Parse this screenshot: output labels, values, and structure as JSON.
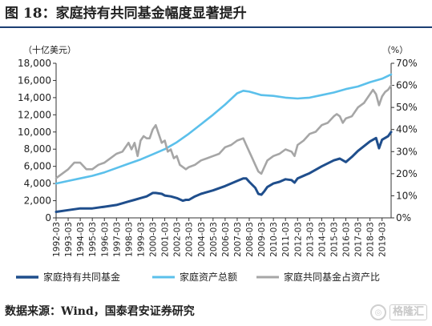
{
  "figure": {
    "title": "图 18：家庭持有共同基金幅度显著提升",
    "source": "数据来源：Wind，国泰君安证券研究",
    "watermark": "格隆汇"
  },
  "chart_data": {
    "type": "line",
    "left_axis_label": "（十亿美元）",
    "right_axis_label": "（%）",
    "y_left_range": [
      0,
      18000
    ],
    "y_left_ticks": [
      "0",
      "2,000",
      "4,000",
      "6,000",
      "8,000",
      "10,000",
      "12,000",
      "14,000",
      "16,000",
      "18,000"
    ],
    "y_right_range": [
      0,
      70
    ],
    "y_right_ticks": [
      "0%",
      "10%",
      "20%",
      "30%",
      "40%",
      "50%",
      "60%",
      "70%"
    ],
    "x_range": [
      1992.0,
      2019.75
    ],
    "x_tick_labels": [
      "1992-03",
      "1993-03",
      "1994-03",
      "1995-03",
      "1996-03",
      "1997-03",
      "1998-03",
      "1999-03",
      "2000-03",
      "2001-03",
      "2002-03",
      "2003-03",
      "2004-03",
      "2005-03",
      "2006-03",
      "2007-03",
      "2008-03",
      "2009-03",
      "2010-03",
      "2011-03",
      "2012-03",
      "2013-03",
      "2014-03",
      "2015-03",
      "2016-03",
      "2017-03",
      "2018-03",
      "2019-03"
    ],
    "grid": false,
    "legend_position": "bottom",
    "series": [
      {
        "name": "家庭持有共同基金",
        "axis": "left",
        "color": "#1f4e8c",
        "x": [
          1992.0,
          1993.0,
          1994.0,
          1995.0,
          1996.0,
          1997.0,
          1998.0,
          1998.5,
          1999.0,
          1999.5,
          2000.0,
          2000.25,
          2000.75,
          2001.0,
          2001.5,
          2002.0,
          2002.5,
          2002.75,
          2003.0,
          2003.5,
          2004.0,
          2005.0,
          2006.0,
          2007.0,
          2007.5,
          2007.75,
          2008.0,
          2008.5,
          2008.75,
          2009.0,
          2009.25,
          2009.5,
          2010.0,
          2010.5,
          2011.0,
          2011.5,
          2011.75,
          2012.0,
          2013.0,
          2014.0,
          2015.0,
          2015.5,
          2016.0,
          2016.5,
          2017.0,
          2018.0,
          2018.5,
          2018.75,
          2019.0,
          2019.5,
          2019.75
        ],
        "values": [
          700,
          900,
          1100,
          1100,
          1300,
          1500,
          1900,
          2100,
          2300,
          2500,
          2900,
          2900,
          2800,
          2600,
          2500,
          2300,
          2000,
          2100,
          2100,
          2500,
          2800,
          3200,
          3700,
          4300,
          4600,
          4600,
          4200,
          3500,
          2800,
          2700,
          3100,
          3600,
          4000,
          4200,
          4500,
          4400,
          4100,
          4600,
          5200,
          6000,
          6700,
          6900,
          6500,
          7100,
          7800,
          8900,
          9300,
          8100,
          9100,
          9500,
          10000
        ]
      },
      {
        "name": "家庭资产总额",
        "axis": "left",
        "color": "#5bc0eb",
        "x": [
          1992.0,
          1993.0,
          1994.0,
          1995.0,
          1996.0,
          1997.0,
          1998.0,
          1999.0,
          2000.0,
          2001.0,
          2002.0,
          2003.0,
          2004.0,
          2005.0,
          2006.0,
          2007.0,
          2007.5,
          2008.0,
          2008.5,
          2009.0,
          2010.0,
          2011.0,
          2012.0,
          2013.0,
          2014.0,
          2015.0,
          2016.0,
          2017.0,
          2018.0,
          2019.0,
          2019.75
        ],
        "values": [
          4000,
          4300,
          4600,
          4900,
          5300,
          5800,
          6300,
          6800,
          7400,
          8000,
          8800,
          9800,
          10900,
          12000,
          13200,
          14500,
          14800,
          14700,
          14500,
          14300,
          14200,
          14000,
          13900,
          14000,
          14300,
          14600,
          15000,
          15300,
          15800,
          16200,
          16700
        ]
      },
      {
        "name": "家庭共同基金占资产比",
        "axis": "right",
        "color": "#a6a6a6",
        "x": [
          1992.0,
          1992.5,
          1993.0,
          1993.5,
          1994.0,
          1994.5,
          1995.0,
          1995.5,
          1996.0,
          1996.5,
          1997.0,
          1997.5,
          1998.0,
          1998.25,
          1998.5,
          1998.75,
          1999.0,
          1999.25,
          1999.5,
          1999.75,
          2000.0,
          2000.25,
          2000.5,
          2000.75,
          2001.0,
          2001.25,
          2001.5,
          2001.75,
          2002.0,
          2002.25,
          2002.5,
          2002.75,
          2003.0,
          2003.5,
          2004.0,
          2004.5,
          2005.0,
          2005.5,
          2006.0,
          2006.5,
          2007.0,
          2007.5,
          2007.75,
          2008.0,
          2008.25,
          2008.5,
          2008.75,
          2009.0,
          2009.25,
          2009.5,
          2010.0,
          2010.5,
          2011.0,
          2011.5,
          2011.75,
          2012.0,
          2012.5,
          2013.0,
          2013.5,
          2014.0,
          2014.5,
          2015.0,
          2015.25,
          2015.5,
          2015.75,
          2016.0,
          2016.5,
          2017.0,
          2017.5,
          2018.0,
          2018.25,
          2018.5,
          2018.75,
          2019.0,
          2019.25,
          2019.5,
          2019.75
        ],
        "values": [
          18,
          20,
          22,
          25,
          25,
          22,
          22,
          24,
          25,
          27,
          29,
          30,
          34,
          31,
          34,
          28,
          35,
          37,
          36,
          36,
          40,
          42,
          38,
          34,
          35,
          30,
          31,
          27,
          28,
          24,
          23,
          22,
          23,
          24,
          26,
          27,
          28,
          29,
          32,
          33,
          35,
          36,
          33,
          30,
          27,
          24,
          21,
          20,
          23,
          26,
          28,
          29,
          31,
          30,
          28,
          33,
          35,
          38,
          39,
          42,
          43,
          46,
          47,
          46,
          43,
          45,
          46,
          50,
          52,
          56,
          58,
          56,
          51,
          55,
          57,
          58,
          60
        ]
      }
    ]
  }
}
